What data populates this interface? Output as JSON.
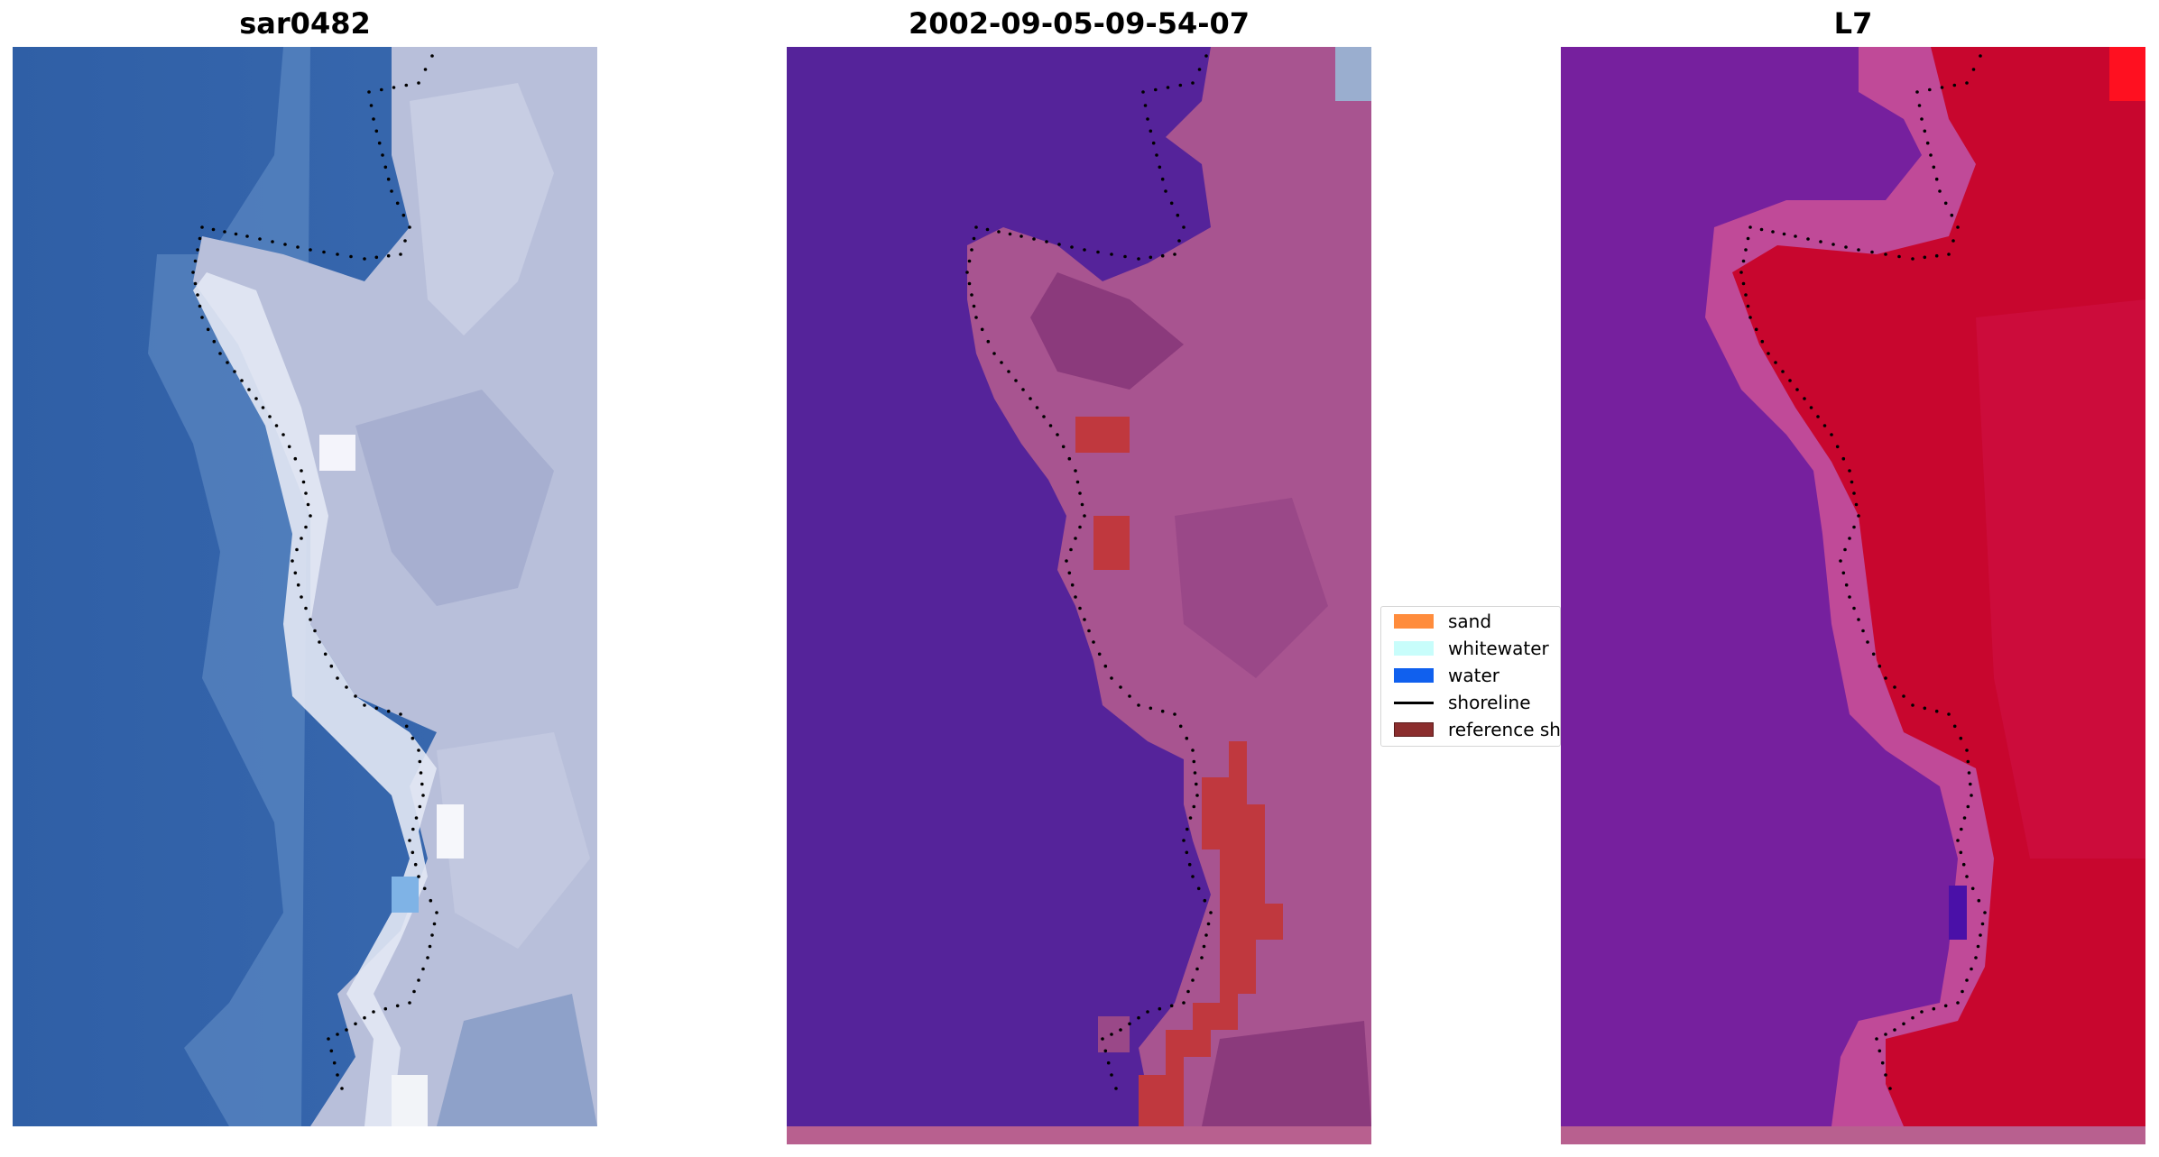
{
  "panels": [
    {
      "title": "sar0482"
    },
    {
      "title": "2002-09-05-09-54-07"
    },
    {
      "title": "L7"
    }
  ],
  "legend": {
    "items": [
      {
        "label": "sand",
        "color": "#ff8c3c",
        "kind": "patch"
      },
      {
        "label": "whitewater",
        "color": "#c8fdfb",
        "kind": "patch"
      },
      {
        "label": "water",
        "color": "#1060ee",
        "kind": "patch"
      },
      {
        "label": "shoreline",
        "color": "#000000",
        "kind": "line"
      },
      {
        "label": "reference shoreline",
        "color": "#8b2e2e",
        "kind": "patch"
      }
    ]
  },
  "colors": {
    "ocean_rgb": "#2f62a8",
    "land_rgb": "#b6bdd8",
    "classified_water": "#55239a",
    "classified_land": "#a85490",
    "classified_sand_overlay": "#c0383e",
    "index_low": "#7a22a0",
    "index_high": "#c8062e",
    "bottom_strip": "#b8608f",
    "shoreline_dots": "#000000"
  }
}
